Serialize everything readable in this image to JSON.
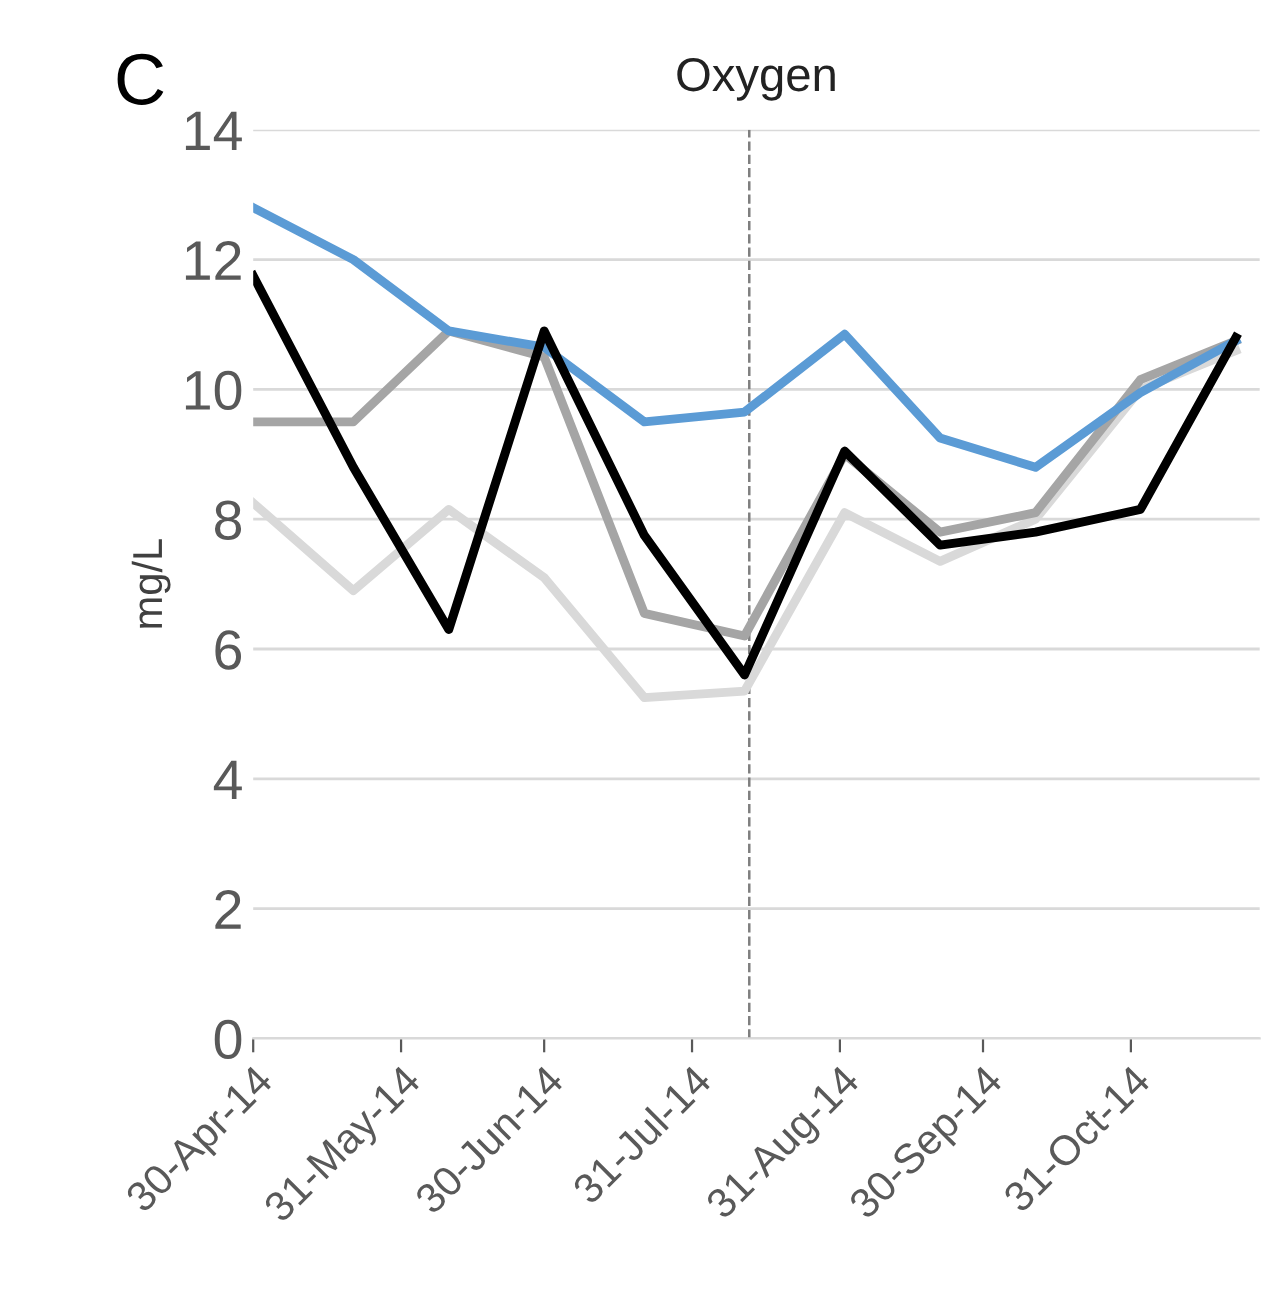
{
  "chart_data": {
    "type": "line",
    "title": "Oxygen",
    "ylabel": "mg/L",
    "annotations": [
      "C"
    ],
    "x": [
      "2014-04-30",
      "2014-05-21",
      "2014-06-10",
      "2014-06-30",
      "2014-07-21",
      "2014-08-11",
      "2014-09-01",
      "2014-09-21",
      "2014-10-11",
      "2014-11-02",
      "2014-11-22"
    ],
    "series": [
      {
        "color": "#d9d9d9",
        "values": [
          8.25,
          6.9,
          8.15,
          7.1,
          5.25,
          5.35,
          8.1,
          7.35,
          8.0,
          10.0,
          10.6
        ]
      },
      {
        "color": "#a5a5a5",
        "values": [
          9.5,
          9.5,
          10.9,
          10.5,
          6.55,
          6.2,
          9.0,
          7.8,
          8.1,
          10.15,
          10.75
        ]
      },
      {
        "color": "#5b9bd5",
        "values": [
          12.8,
          12.0,
          10.9,
          10.65,
          9.5,
          9.65,
          10.85,
          9.25,
          8.8,
          9.95,
          10.75
        ]
      },
      {
        "color": "#000000",
        "values": [
          11.75,
          8.8,
          6.3,
          10.9,
          7.75,
          5.6,
          9.05,
          7.6,
          7.8,
          8.15,
          10.8
        ]
      }
    ],
    "xlim": [
      "2014-04-30",
      "2014-11-27"
    ],
    "xticks": [
      {
        "value": "2014-04-30",
        "label": "30-Apr-14"
      },
      {
        "value": "2014-05-31",
        "label": "31-May-14"
      },
      {
        "value": "2014-06-30",
        "label": "30-Jun-14"
      },
      {
        "value": "2014-07-31",
        "label": "31-Jul-14"
      },
      {
        "value": "2014-08-31",
        "label": "31-Aug-14"
      },
      {
        "value": "2014-09-30",
        "label": "30-Sep-14"
      },
      {
        "value": "2014-10-31",
        "label": "31-Oct-14"
      }
    ],
    "ylim": [
      0,
      14
    ],
    "yticks": [
      0,
      2,
      4,
      6,
      8,
      10,
      12,
      14
    ],
    "ref_lines": [
      {
        "axis": "x",
        "value": "2014-08-12",
        "color": "#7f7f7f",
        "line_style": "dashed"
      }
    ],
    "grid": "y",
    "legend": false,
    "marker": "none",
    "line_style": "solid"
  }
}
